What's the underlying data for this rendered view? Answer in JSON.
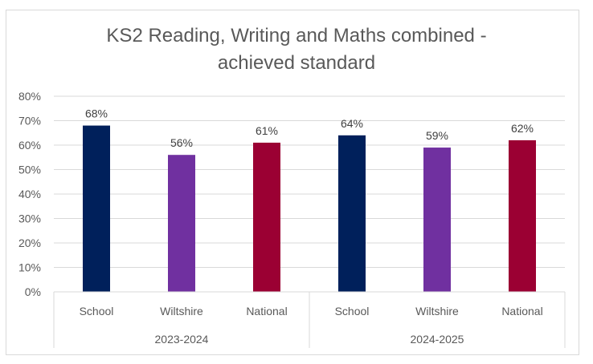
{
  "chart_data": {
    "type": "bar",
    "title_line1": "KS2 Reading, Writing and Maths combined -",
    "title_line2": "achieved standard",
    "groups": [
      {
        "label": "2023-2024",
        "bars": [
          {
            "category": "School",
            "value": 68,
            "label": "68%",
            "color": "#00205b"
          },
          {
            "category": "Wiltshire",
            "value": 56,
            "label": "56%",
            "color": "#7030a0"
          },
          {
            "category": "National",
            "value": 61,
            "label": "61%",
            "color": "#9b0033"
          }
        ]
      },
      {
        "label": "2024-2025",
        "bars": [
          {
            "category": "School",
            "value": 64,
            "label": "64%",
            "color": "#00205b"
          },
          {
            "category": "Wiltshire",
            "value": 59,
            "label": "59%",
            "color": "#7030a0"
          },
          {
            "category": "National",
            "value": 62,
            "label": "62%",
            "color": "#9b0033"
          }
        ]
      }
    ],
    "ylim": [
      0,
      80
    ],
    "yticks": [
      "0%",
      "10%",
      "20%",
      "30%",
      "40%",
      "50%",
      "60%",
      "70%",
      "80%"
    ],
    "grid": true,
    "legend": "none"
  }
}
